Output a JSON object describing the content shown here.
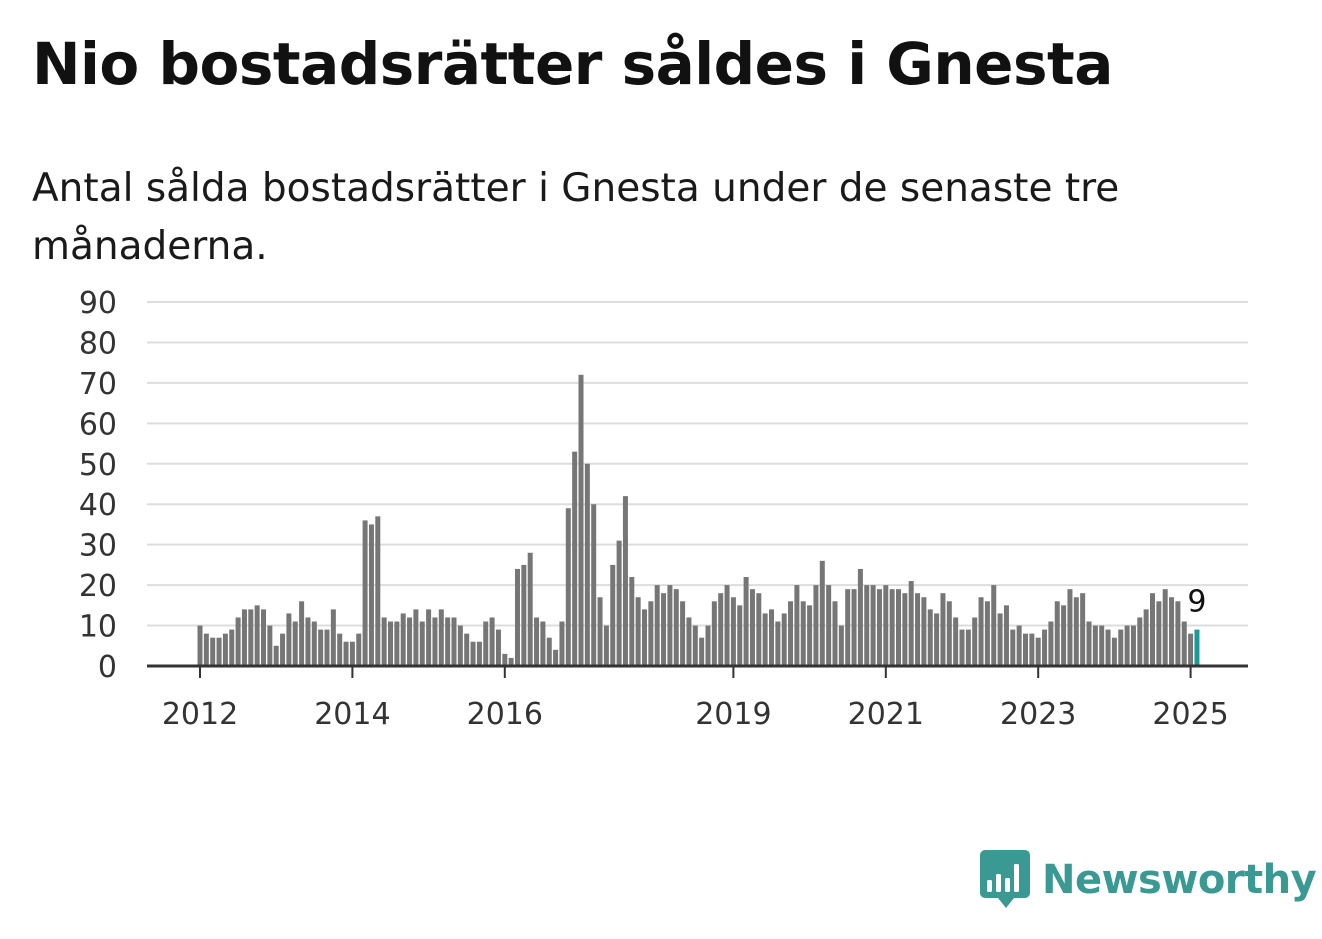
{
  "title": "Nio bostadsrätter såldes i Gnesta",
  "subtitle": "Antal sålda bostadsrätter i Gnesta under de senaste tre månaderna.",
  "brand": {
    "name": "Newsworthy",
    "color": "#3a9a93",
    "icon": "newsworthy-bar-chart-icon"
  },
  "chart_data": {
    "type": "bar",
    "ylim": [
      0,
      90
    ],
    "y_ticks": [
      "0",
      "10",
      "20",
      "30",
      "40",
      "50",
      "60",
      "70",
      "80",
      "90"
    ],
    "x_ticks": [
      {
        "label": "2012",
        "index": 0
      },
      {
        "label": "2014",
        "index": 24
      },
      {
        "label": "2016",
        "index": 48
      },
      {
        "label": "2019",
        "index": 84
      },
      {
        "label": "2021",
        "index": 108
      },
      {
        "label": "2023",
        "index": 132
      },
      {
        "label": "2025",
        "index": 156
      }
    ],
    "grid": true,
    "bar_color": "#767676",
    "highlight_color": "#1a9b96",
    "highlight_index": 157,
    "highlight_label": "9",
    "values": [
      10,
      8,
      7,
      7,
      8,
      9,
      12,
      14,
      14,
      15,
      14,
      10,
      5,
      8,
      13,
      11,
      16,
      12,
      11,
      9,
      9,
      14,
      8,
      6,
      6,
      8,
      36,
      35,
      37,
      12,
      11,
      11,
      13,
      12,
      14,
      11,
      14,
      12,
      14,
      12,
      12,
      10,
      8,
      6,
      6,
      11,
      12,
      9,
      3,
      2,
      24,
      25,
      28,
      12,
      11,
      7,
      4,
      11,
      39,
      53,
      72,
      50,
      40,
      17,
      10,
      25,
      31,
      42,
      22,
      17,
      14,
      16,
      20,
      18,
      20,
      19,
      16,
      12,
      10,
      7,
      10,
      16,
      18,
      20,
      17,
      15,
      22,
      19,
      18,
      13,
      14,
      11,
      13,
      16,
      20,
      16,
      15,
      20,
      26,
      20,
      16,
      10,
      19,
      19,
      24,
      20,
      20,
      19,
      20,
      19,
      19,
      18,
      21,
      18,
      17,
      14,
      13,
      18,
      16,
      12,
      9,
      9,
      12,
      17,
      16,
      20,
      13,
      15,
      9,
      10,
      8,
      8,
      7,
      9,
      11,
      16,
      15,
      19,
      17,
      18,
      11,
      10,
      10,
      9,
      7,
      9,
      10,
      10,
      12,
      14,
      18,
      16,
      19,
      17,
      16,
      11,
      8,
      9
    ]
  }
}
